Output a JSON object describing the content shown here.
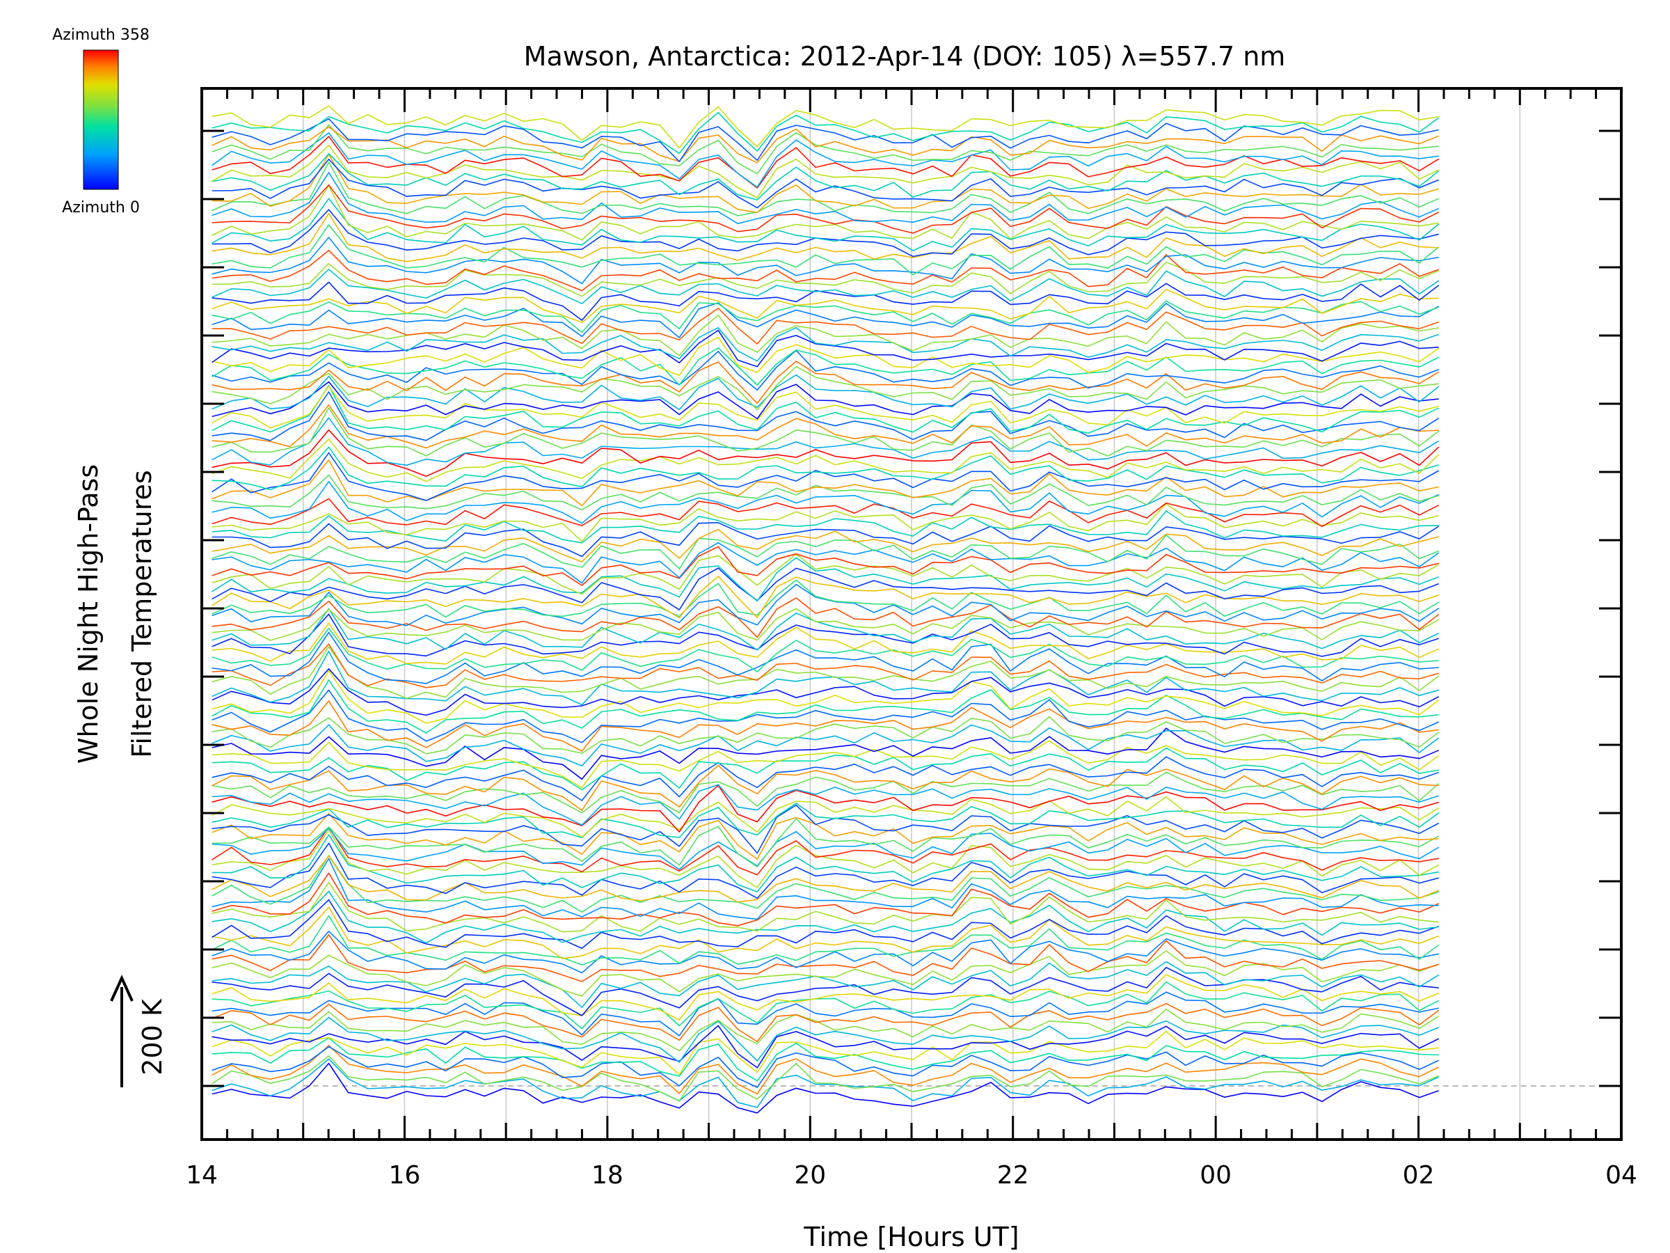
{
  "chart_data": {
    "type": "line",
    "title": "Mawson, Antarctica: 2012-Apr-14 (DOY: 105) λ=557.7 nm",
    "xlabel": "Time [Hours UT]",
    "ylabel_lines": [
      "Whole Night High-Pass",
      "Filtered Temperatures"
    ],
    "x_ticks": [
      "14",
      "16",
      "18",
      "20",
      "22",
      "00",
      "02",
      "04"
    ],
    "xlim_hours": [
      14,
      28
    ],
    "data_end_hour": 26.2,
    "series_count": 128,
    "scale_bar_label": "200 K",
    "legend": {
      "top_label": "Azimuth 358",
      "bottom_label": "Azimuth 0",
      "azimuth_range": [
        0,
        358
      ],
      "colormap": "rainbow"
    },
    "grid": true,
    "colors": {
      "axis": "#000000",
      "gridline": "#c8c8c8",
      "baseline": "#a0a0a0"
    }
  }
}
